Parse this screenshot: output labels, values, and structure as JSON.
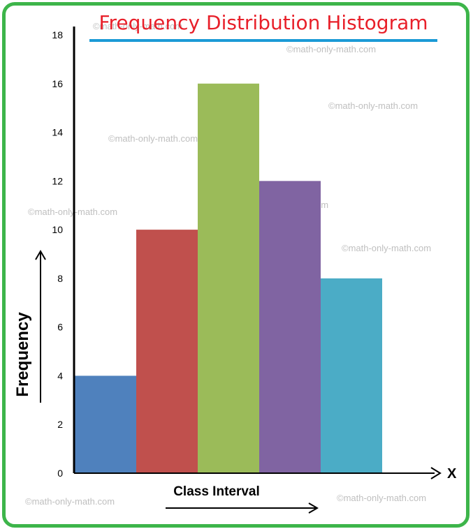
{
  "watermark": "©math-only-math.com",
  "chart_data": {
    "type": "bar",
    "title": "Frequency Distribution Histogram",
    "xlabel": "Class Interval",
    "ylabel": "Frequency",
    "x_axis_letter": "X",
    "categories": [
      "",
      "",
      "",
      "",
      ""
    ],
    "values": [
      4,
      10,
      16,
      12,
      8
    ],
    "bar_colors": [
      "#4f81bd",
      "#c0504d",
      "#9bbb59",
      "#8064a2",
      "#4bacc6"
    ],
    "ylim": [
      0,
      18
    ],
    "yticks": [
      "0",
      "2",
      "4",
      "6",
      "8",
      "10",
      "12",
      "14",
      "16",
      "18"
    ],
    "grid": false,
    "legend": "none"
  },
  "colors": {
    "border": "#3db54a",
    "title": "#e8202a",
    "title_underline": "#1b9ad6"
  }
}
